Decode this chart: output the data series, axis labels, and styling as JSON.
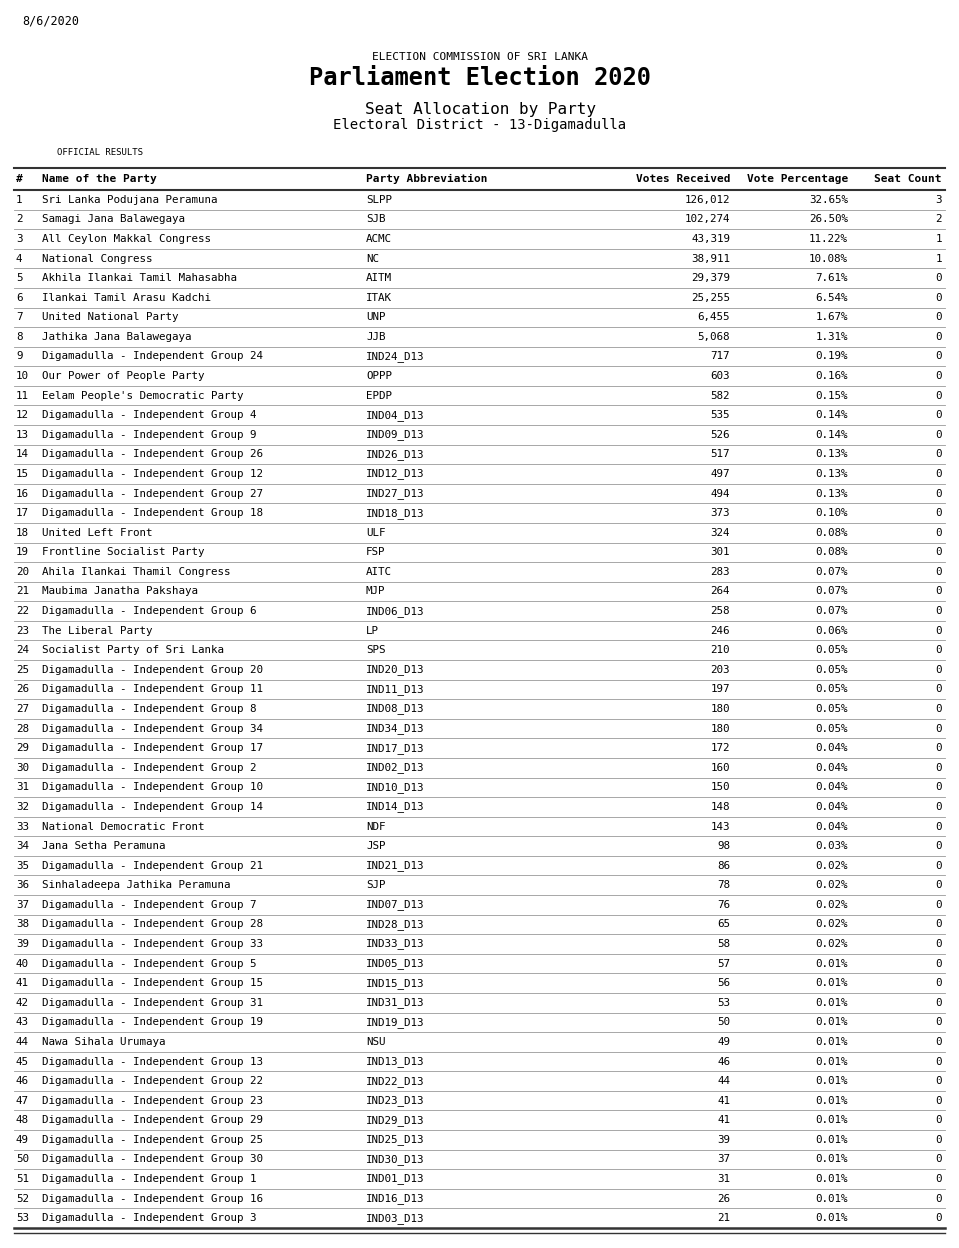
{
  "date": "8/6/2020",
  "commission": "ELECTION COMMISSION OF SRI LANKA",
  "title": "Parliament Election 2020",
  "subtitle1": "Seat Allocation by Party",
  "subtitle2": "Electoral District - 13-Digamadulla",
  "official_results": "OFFICIAL RESULTS",
  "col_headers": [
    "#",
    "Name of the Party",
    "Party Abbreviation",
    "Votes Received",
    "Vote Percentage",
    "Seat Count"
  ],
  "parties": [
    [
      1,
      "Sri Lanka Podujana Peramuna",
      "SLPP",
      "126,012",
      "32.65%",
      "3"
    ],
    [
      2,
      "Samagi Jana Balawegaya",
      "SJB",
      "102,274",
      "26.50%",
      "2"
    ],
    [
      3,
      "All Ceylon Makkal Congress",
      "ACMC",
      "43,319",
      "11.22%",
      "1"
    ],
    [
      4,
      "National Congress",
      "NC",
      "38,911",
      "10.08%",
      "1"
    ],
    [
      5,
      "Akhila Ilankai Tamil Mahasabha",
      "AITM",
      "29,379",
      "7.61%",
      "0"
    ],
    [
      6,
      "Ilankai Tamil Arasu Kadchi",
      "ITAK",
      "25,255",
      "6.54%",
      "0"
    ],
    [
      7,
      "United National Party",
      "UNP",
      "6,455",
      "1.67%",
      "0"
    ],
    [
      8,
      "Jathika Jana Balawegaya",
      "JJB",
      "5,068",
      "1.31%",
      "0"
    ],
    [
      9,
      "Digamadulla - Independent Group 24",
      "IND24_D13",
      "717",
      "0.19%",
      "0"
    ],
    [
      10,
      "Our Power of People Party",
      "OPPP",
      "603",
      "0.16%",
      "0"
    ],
    [
      11,
      "Eelam People's Democratic Party",
      "EPDP",
      "582",
      "0.15%",
      "0"
    ],
    [
      12,
      "Digamadulla - Independent Group 4",
      "IND04_D13",
      "535",
      "0.14%",
      "0"
    ],
    [
      13,
      "Digamadulla - Independent Group 9",
      "IND09_D13",
      "526",
      "0.14%",
      "0"
    ],
    [
      14,
      "Digamadulla - Independent Group 26",
      "IND26_D13",
      "517",
      "0.13%",
      "0"
    ],
    [
      15,
      "Digamadulla - Independent Group 12",
      "IND12_D13",
      "497",
      "0.13%",
      "0"
    ],
    [
      16,
      "Digamadulla - Independent Group 27",
      "IND27_D13",
      "494",
      "0.13%",
      "0"
    ],
    [
      17,
      "Digamadulla - Independent Group 18",
      "IND18_D13",
      "373",
      "0.10%",
      "0"
    ],
    [
      18,
      "United Left Front",
      "ULF",
      "324",
      "0.08%",
      "0"
    ],
    [
      19,
      "Frontline Socialist Party",
      "FSP",
      "301",
      "0.08%",
      "0"
    ],
    [
      20,
      "Ahila Ilankai Thamil Congress",
      "AITC",
      "283",
      "0.07%",
      "0"
    ],
    [
      21,
      "Maubima Janatha Pakshaya",
      "MJP",
      "264",
      "0.07%",
      "0"
    ],
    [
      22,
      "Digamadulla - Independent Group 6",
      "IND06_D13",
      "258",
      "0.07%",
      "0"
    ],
    [
      23,
      "The Liberal Party",
      "LP",
      "246",
      "0.06%",
      "0"
    ],
    [
      24,
      "Socialist Party of Sri Lanka",
      "SPS",
      "210",
      "0.05%",
      "0"
    ],
    [
      25,
      "Digamadulla - Independent Group 20",
      "IND20_D13",
      "203",
      "0.05%",
      "0"
    ],
    [
      26,
      "Digamadulla - Independent Group 11",
      "IND11_D13",
      "197",
      "0.05%",
      "0"
    ],
    [
      27,
      "Digamadulla - Independent Group 8",
      "IND08_D13",
      "180",
      "0.05%",
      "0"
    ],
    [
      28,
      "Digamadulla - Independent Group 34",
      "IND34_D13",
      "180",
      "0.05%",
      "0"
    ],
    [
      29,
      "Digamadulla - Independent Group 17",
      "IND17_D13",
      "172",
      "0.04%",
      "0"
    ],
    [
      30,
      "Digamadulla - Independent Group 2",
      "IND02_D13",
      "160",
      "0.04%",
      "0"
    ],
    [
      31,
      "Digamadulla - Independent Group 10",
      "IND10_D13",
      "150",
      "0.04%",
      "0"
    ],
    [
      32,
      "Digamadulla - Independent Group 14",
      "IND14_D13",
      "148",
      "0.04%",
      "0"
    ],
    [
      33,
      "National Democratic Front",
      "NDF",
      "143",
      "0.04%",
      "0"
    ],
    [
      34,
      "Jana Setha Peramuna",
      "JSP",
      "98",
      "0.03%",
      "0"
    ],
    [
      35,
      "Digamadulla - Independent Group 21",
      "IND21_D13",
      "86",
      "0.02%",
      "0"
    ],
    [
      36,
      "Sinhaladeepa Jathika Peramuna",
      "SJP",
      "78",
      "0.02%",
      "0"
    ],
    [
      37,
      "Digamadulla - Independent Group 7",
      "IND07_D13",
      "76",
      "0.02%",
      "0"
    ],
    [
      38,
      "Digamadulla - Independent Group 28",
      "IND28_D13",
      "65",
      "0.02%",
      "0"
    ],
    [
      39,
      "Digamadulla - Independent Group 33",
      "IND33_D13",
      "58",
      "0.02%",
      "0"
    ],
    [
      40,
      "Digamadulla - Independent Group 5",
      "IND05_D13",
      "57",
      "0.01%",
      "0"
    ],
    [
      41,
      "Digamadulla - Independent Group 15",
      "IND15_D13",
      "56",
      "0.01%",
      "0"
    ],
    [
      42,
      "Digamadulla - Independent Group 31",
      "IND31_D13",
      "53",
      "0.01%",
      "0"
    ],
    [
      43,
      "Digamadulla - Independent Group 19",
      "IND19_D13",
      "50",
      "0.01%",
      "0"
    ],
    [
      44,
      "Nawa Sihala Urumaya",
      "NSU",
      "49",
      "0.01%",
      "0"
    ],
    [
      45,
      "Digamadulla - Independent Group 13",
      "IND13_D13",
      "46",
      "0.01%",
      "0"
    ],
    [
      46,
      "Digamadulla - Independent Group 22",
      "IND22_D13",
      "44",
      "0.01%",
      "0"
    ],
    [
      47,
      "Digamadulla - Independent Group 23",
      "IND23_D13",
      "41",
      "0.01%",
      "0"
    ],
    [
      48,
      "Digamadulla - Independent Group 29",
      "IND29_D13",
      "41",
      "0.01%",
      "0"
    ],
    [
      49,
      "Digamadulla - Independent Group 25",
      "IND25_D13",
      "39",
      "0.01%",
      "0"
    ],
    [
      50,
      "Digamadulla - Independent Group 30",
      "IND30_D13",
      "37",
      "0.01%",
      "0"
    ],
    [
      51,
      "Digamadulla - Independent Group 1",
      "IND01_D13",
      "31",
      "0.01%",
      "0"
    ],
    [
      52,
      "Digamadulla - Independent Group 16",
      "IND16_D13",
      "26",
      "0.01%",
      "0"
    ],
    [
      53,
      "Digamadulla - Independent Group 3",
      "IND03_D13",
      "21",
      "0.01%",
      "0"
    ]
  ],
  "bg_color": "#ffffff",
  "text_color": "#000000",
  "header_line_color": "#333333",
  "row_line_color": "#999999",
  "fig_width": 9.59,
  "fig_height": 12.48,
  "dpi": 100
}
